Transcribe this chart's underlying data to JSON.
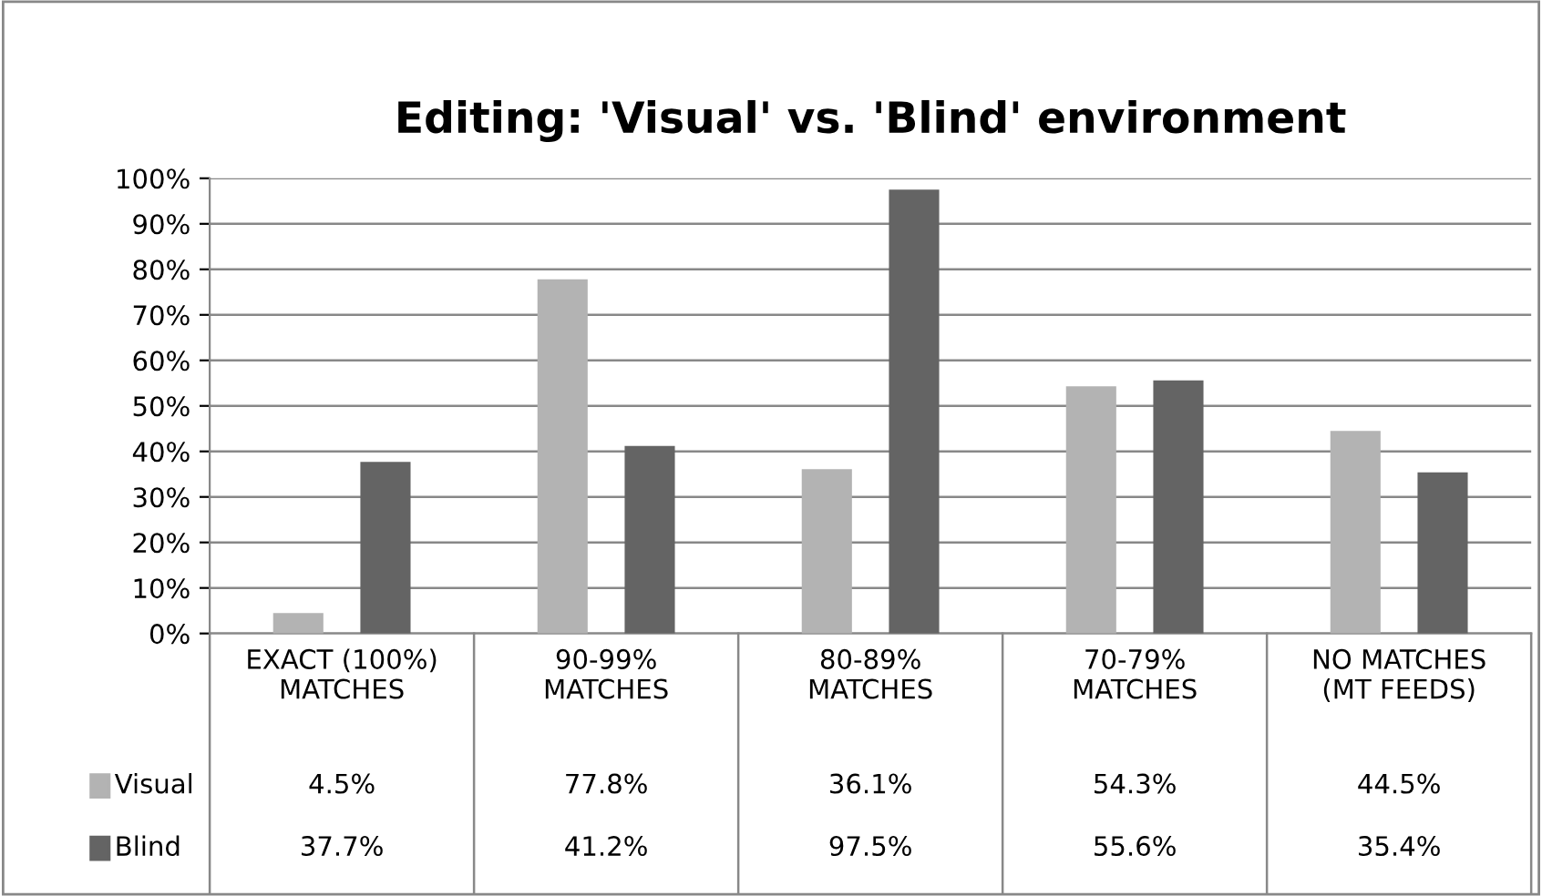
{
  "chart_data": {
    "type": "bar",
    "title": "Editing: 'Visual' vs. 'Blind' environment",
    "categories": [
      "EXACT (100%)\nMATCHES",
      "90-99%\nMATCHES",
      "80-89%\nMATCHES",
      "70-79%\nMATCHES",
      "NO MATCHES\n(MT FEEDS)"
    ],
    "series": [
      {
        "name": "Visual",
        "color": "#b3b3b3",
        "values": [
          4.5,
          77.8,
          36.1,
          54.3,
          44.5
        ],
        "value_labels": [
          "4.5%",
          "77.8%",
          "36.1%",
          "54.3%",
          "44.5%"
        ]
      },
      {
        "name": "Blind",
        "color": "#646464",
        "values": [
          37.7,
          41.2,
          97.5,
          55.6,
          35.4
        ],
        "value_labels": [
          "37.7%",
          "41.2%",
          "97.5%",
          "55.6%",
          "35.4%"
        ]
      }
    ],
    "ylim": [
      0,
      100
    ],
    "yticks": [
      {
        "value": 0,
        "label": "0%"
      },
      {
        "value": 10,
        "label": "10%"
      },
      {
        "value": 20,
        "label": "20%"
      },
      {
        "value": 30,
        "label": "30%"
      },
      {
        "value": 40,
        "label": "40%"
      },
      {
        "value": 50,
        "label": "50%"
      },
      {
        "value": 60,
        "label": "60%"
      },
      {
        "value": 70,
        "label": "70%"
      },
      {
        "value": 80,
        "label": "80%"
      },
      {
        "value": 90,
        "label": "90%"
      },
      {
        "value": 100,
        "label": "100%"
      }
    ],
    "grid": "y",
    "legend": "bottom"
  }
}
